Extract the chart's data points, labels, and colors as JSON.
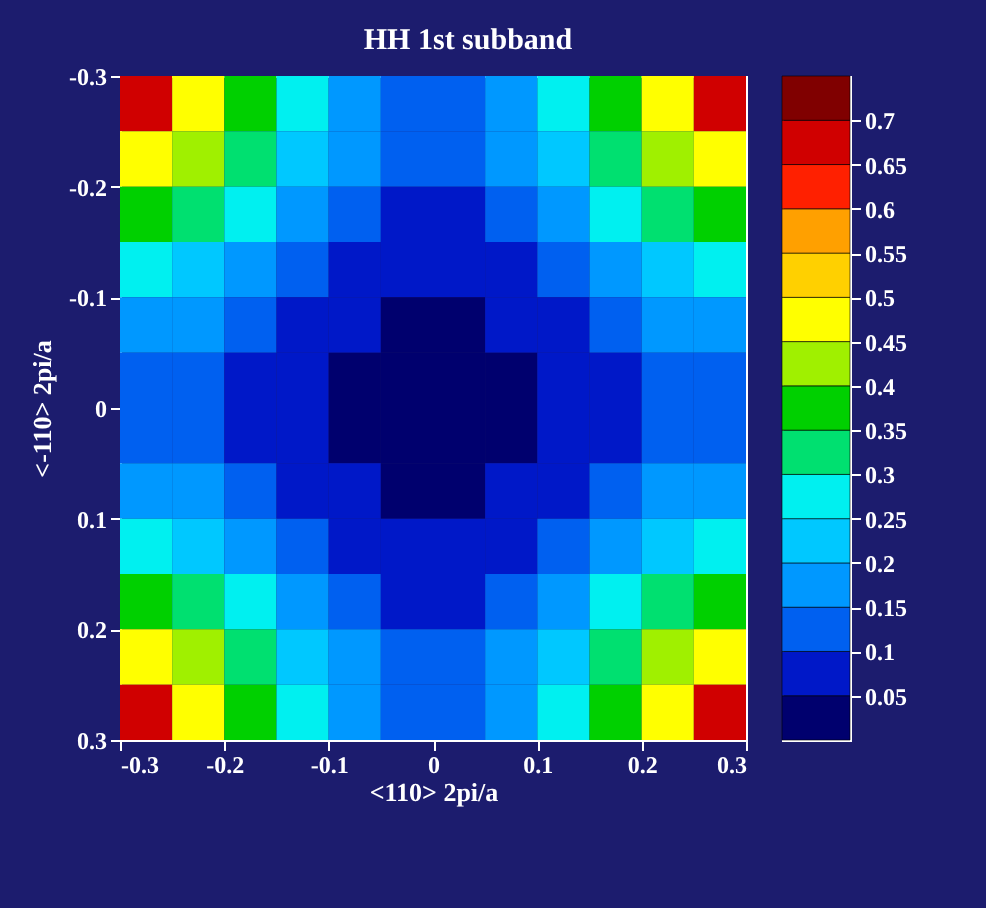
{
  "chart_data": {
    "type": "heatmap",
    "title": "HH 1st subband",
    "xlabel": "<110> 2pi/a",
    "ylabel": "<-110> 2pi/a",
    "x": [
      -0.275,
      -0.225,
      -0.175,
      -0.125,
      -0.075,
      -0.025,
      0.025,
      0.075,
      0.125,
      0.175,
      0.225,
      0.275
    ],
    "xlim": [
      -0.3,
      0.3
    ],
    "xticks": [
      -0.3,
      -0.2,
      -0.1,
      0,
      0.1,
      0.2,
      0.3
    ],
    "ylim": [
      0.3,
      -0.3
    ],
    "yticks": [
      -0.3,
      -0.2,
      -0.1,
      0,
      0.1,
      0.2,
      0.3
    ],
    "clim": [
      0,
      0.75
    ],
    "cticks": [
      0.05,
      0.1,
      0.15,
      0.2,
      0.25,
      0.3,
      0.35,
      0.4,
      0.45,
      0.5,
      0.55,
      0.6,
      0.65,
      0.7
    ],
    "colors": [
      "#00006e",
      "#0018c8",
      "#0060f0",
      "#0098ff",
      "#00c8ff",
      "#00f0f0",
      "#00e070",
      "#00d000",
      "#a0f000",
      "#ffff00",
      "#ffd000",
      "#ffa000",
      "#ff2000",
      "#d00000",
      "#800000"
    ],
    "cells": [
      [
        0.66,
        0.48,
        0.38,
        0.28,
        0.19,
        0.14,
        0.14,
        0.19,
        0.28,
        0.38,
        0.48,
        0.66
      ],
      [
        0.48,
        0.41,
        0.32,
        0.22,
        0.15,
        0.11,
        0.11,
        0.15,
        0.22,
        0.32,
        0.41,
        0.48
      ],
      [
        0.38,
        0.32,
        0.26,
        0.18,
        0.11,
        0.08,
        0.08,
        0.11,
        0.18,
        0.26,
        0.32,
        0.38
      ],
      [
        0.28,
        0.22,
        0.18,
        0.14,
        0.09,
        0.06,
        0.06,
        0.09,
        0.14,
        0.18,
        0.22,
        0.28
      ],
      [
        0.19,
        0.15,
        0.11,
        0.09,
        0.06,
        0.03,
        0.03,
        0.06,
        0.09,
        0.11,
        0.15,
        0.19
      ],
      [
        0.14,
        0.11,
        0.08,
        0.06,
        0.03,
        0.01,
        0.01,
        0.03,
        0.06,
        0.08,
        0.11,
        0.14
      ],
      [
        0.14,
        0.11,
        0.08,
        0.06,
        0.03,
        0.01,
        0.01,
        0.03,
        0.06,
        0.08,
        0.11,
        0.14
      ],
      [
        0.19,
        0.15,
        0.11,
        0.09,
        0.06,
        0.03,
        0.03,
        0.06,
        0.09,
        0.11,
        0.15,
        0.19
      ],
      [
        0.28,
        0.22,
        0.18,
        0.14,
        0.09,
        0.06,
        0.06,
        0.09,
        0.14,
        0.18,
        0.22,
        0.28
      ],
      [
        0.38,
        0.32,
        0.26,
        0.18,
        0.11,
        0.08,
        0.08,
        0.11,
        0.18,
        0.26,
        0.32,
        0.38
      ],
      [
        0.48,
        0.41,
        0.32,
        0.22,
        0.15,
        0.11,
        0.11,
        0.15,
        0.22,
        0.32,
        0.41,
        0.48
      ],
      [
        0.66,
        0.48,
        0.38,
        0.28,
        0.19,
        0.14,
        0.14,
        0.19,
        0.28,
        0.38,
        0.48,
        0.66
      ]
    ]
  }
}
